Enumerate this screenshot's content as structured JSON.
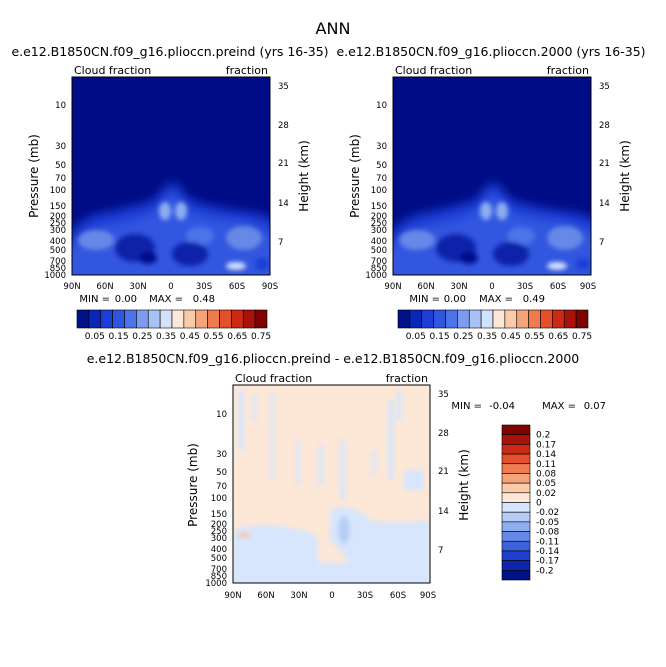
{
  "figure": {
    "title": "ANN"
  },
  "chart_data": [
    {
      "type": "heatmap",
      "title": "e.e12.B1850CN.f09_g16.plioccn.preind (yrs 16-35)",
      "corner_left": "Cloud fraction",
      "corner_right": "fraction",
      "ylabel": "Pressure (mb)",
      "ylabel_right": "Height (km)",
      "x_ticks": [
        "90N",
        "60N",
        "30N",
        "0",
        "30S",
        "60S",
        "90S"
      ],
      "y_ticks": [
        "10",
        "30",
        "50",
        "70",
        "100",
        "150",
        "200",
        "250",
        "300",
        "400",
        "500",
        "700",
        "850",
        "1000"
      ],
      "y_ticks_right": [
        "35",
        "28",
        "21",
        "14",
        "7"
      ],
      "min_label": "MIN =",
      "min_value": "0.00",
      "max_label": "MAX =",
      "max_value": "0.48",
      "colorbar_labels": [
        "0.05",
        "0.15",
        "0.25",
        "0.35",
        "0.45",
        "0.55",
        "0.65",
        "0.75"
      ]
    },
    {
      "type": "heatmap",
      "title": "e.e12.B1850CN.f09_g16.plioccn.2000 (yrs 16-35)",
      "corner_left": "Cloud fraction",
      "corner_right": "fraction",
      "ylabel": "Pressure (mb)",
      "ylabel_right": "Height (km)",
      "x_ticks": [
        "90N",
        "60N",
        "30N",
        "0",
        "30S",
        "60S",
        "90S"
      ],
      "y_ticks": [
        "10",
        "30",
        "50",
        "70",
        "100",
        "150",
        "200",
        "250",
        "300",
        "400",
        "500",
        "700",
        "850",
        "1000"
      ],
      "y_ticks_right": [
        "35",
        "28",
        "21",
        "14",
        "7"
      ],
      "min_label": "MIN =",
      "min_value": "0.00",
      "max_label": "MAX =",
      "max_value": "0.49",
      "colorbar_labels": [
        "0.05",
        "0.15",
        "0.25",
        "0.35",
        "0.45",
        "0.55",
        "0.65",
        "0.75"
      ]
    },
    {
      "type": "heatmap",
      "title": "e.e12.B1850CN.f09_g16.plioccn.preind - e.e12.B1850CN.f09_g16.plioccn.2000",
      "corner_left": "Cloud fraction",
      "corner_right": "fraction",
      "ylabel": "Pressure (mb)",
      "ylabel_right": "Height (km)",
      "x_ticks": [
        "90N",
        "60N",
        "30N",
        "0",
        "30S",
        "60S",
        "90S"
      ],
      "y_ticks": [
        "10",
        "30",
        "50",
        "70",
        "100",
        "150",
        "200",
        "250",
        "300",
        "400",
        "500",
        "700",
        "850",
        "1000"
      ],
      "y_ticks_right": [
        "35",
        "28",
        "21",
        "14",
        "7"
      ],
      "min_label": "MIN =",
      "min_value": "-0.04",
      "max_label": "MAX =",
      "max_value": "0.07",
      "colorbar_labels": [
        "0.2",
        "0.17",
        "0.14",
        "0.11",
        "0.08",
        "0.05",
        "0.02",
        "0",
        "-0.02",
        "-0.05",
        "-0.08",
        "-0.11",
        "-0.14",
        "-0.17",
        "-0.2"
      ]
    }
  ],
  "colors": {
    "background_field": "#000c85",
    "seq_scale": [
      "#00118a",
      "#0a26b6",
      "#1d3ed6",
      "#3056e0",
      "#4c74e8",
      "#7c9cf0",
      "#a9c2f5",
      "#d3e2fb",
      "#fde7d6",
      "#f9cba8",
      "#f5a47a",
      "#ef7b4f",
      "#e4502c",
      "#cc2a14",
      "#a8120a",
      "#7e0404"
    ],
    "diff_scale": [
      "#7e0404",
      "#a8120a",
      "#cc2a14",
      "#e4502c",
      "#ef7b4f",
      "#f5a47a",
      "#f9cba8",
      "#fde7d6",
      "#d7e6fc",
      "#b5cdf6",
      "#8eaeef",
      "#6688e6",
      "#3e62dd",
      "#1f3fcf",
      "#0f24a8",
      "#00118a"
    ]
  }
}
